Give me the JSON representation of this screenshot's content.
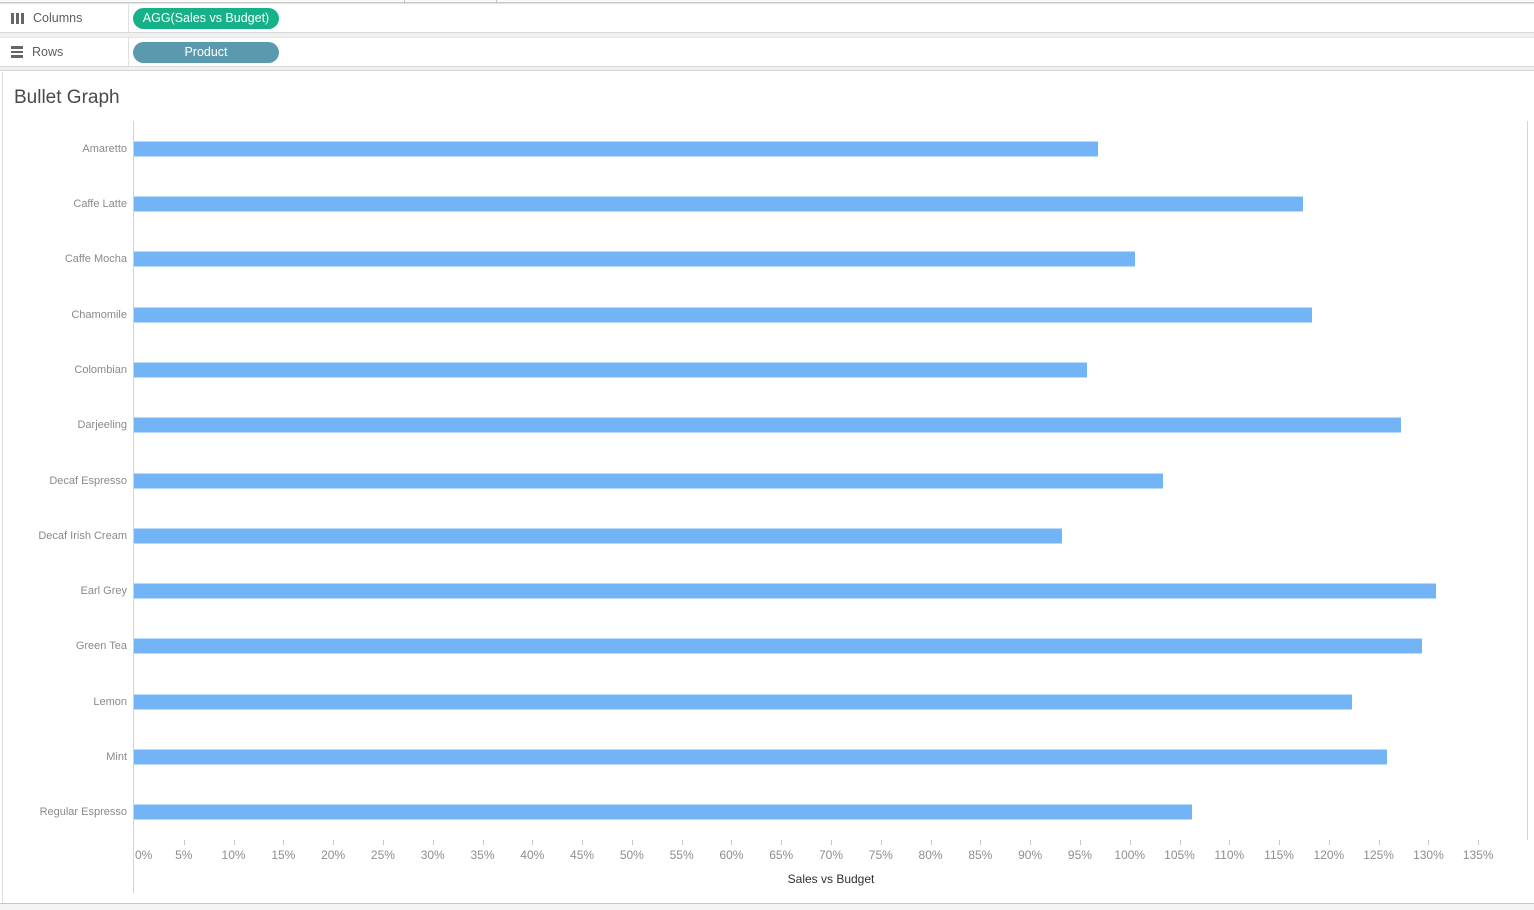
{
  "shelves": {
    "columns": {
      "label": "Columns",
      "pill": "AGG(Sales vs Budget)",
      "pill_color": "#16b186"
    },
    "rows": {
      "label": "Rows",
      "pill": "Product",
      "pill_color": "#5b9aae"
    }
  },
  "title": "Bullet Graph",
  "chart_data": {
    "type": "bar",
    "orientation": "horizontal",
    "title": "Bullet Graph",
    "xlabel": "Sales vs Budget",
    "ylabel": "Product",
    "categories": [
      "Amaretto",
      "Caffe Latte",
      "Caffe Mocha",
      "Chamomile",
      "Colombian",
      "Darjeeling",
      "Decaf Espresso",
      "Decaf Irish Cream",
      "Earl Grey",
      "Green Tea",
      "Lemon",
      "Mint",
      "Regular Espresso"
    ],
    "values": [
      96.9,
      117.5,
      100.6,
      118.4,
      95.8,
      127.3,
      103.4,
      93.3,
      130.9,
      129.4,
      122.4,
      125.9,
      106.3
    ],
    "value_unit": "%",
    "xlim": [
      0,
      140
    ],
    "x_tick_labels": [
      "0%",
      "5%",
      "10%",
      "15%",
      "20%",
      "25%",
      "30%",
      "35%",
      "40%",
      "45%",
      "50%",
      "55%",
      "60%",
      "65%",
      "70%",
      "75%",
      "80%",
      "85%",
      "90%",
      "95%",
      "100%",
      "105%",
      "110%",
      "115%",
      "120%",
      "125%",
      "130%",
      "135%"
    ],
    "bar_color": "#73b4f6",
    "grid": false,
    "legend": false
  }
}
